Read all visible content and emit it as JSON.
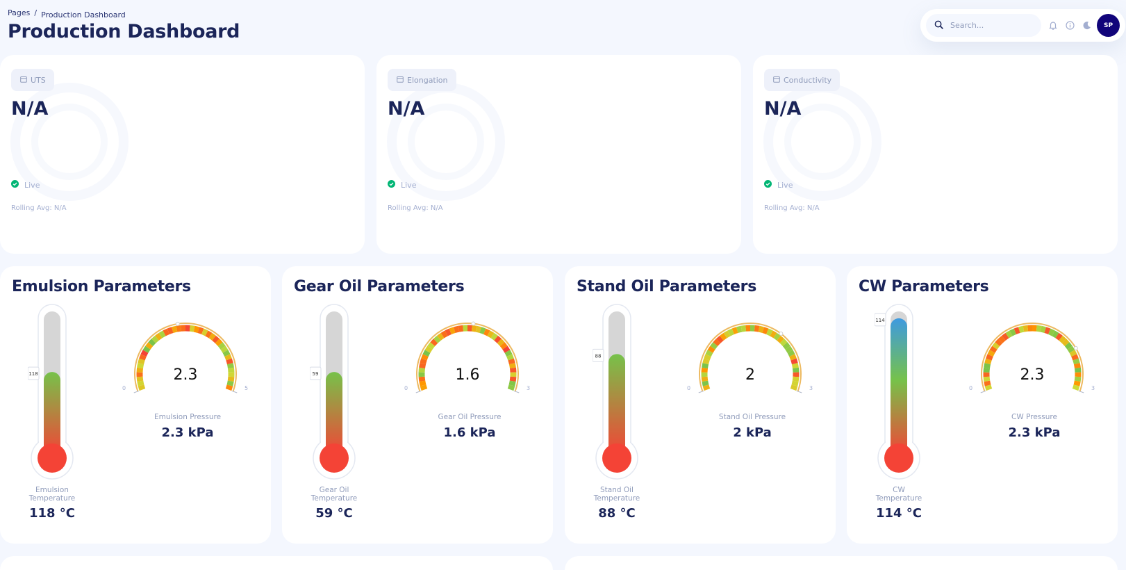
{
  "breadcrumb": {
    "root": "Pages",
    "separator": "/",
    "current": "Production Dashboard"
  },
  "page_title": "Production Dashboard",
  "topbar": {
    "search_placeholder": "Search...",
    "avatar_initials": "SP"
  },
  "kpis": [
    {
      "label": "UTS",
      "value": "N/A",
      "status": "Live",
      "rolling_avg": "Rolling Avg: N/A"
    },
    {
      "label": "Elongation",
      "value": "N/A",
      "status": "Live",
      "rolling_avg": "Rolling Avg: N/A"
    },
    {
      "label": "Conductivity",
      "value": "N/A",
      "status": "Live",
      "rolling_avg": "Rolling Avg: N/A"
    }
  ],
  "panels": [
    {
      "title": "Emulsion Parameters",
      "temp_value": 118,
      "temp_tag": "118",
      "temp_level": 0.56,
      "temp_label_1": "Emulsion",
      "temp_label_2": "Temperature",
      "temp_display": "118 °C",
      "gauge_value": "2.3",
      "gauge_fraction": 0.46,
      "gauge_min": "0",
      "gauge_max": "5",
      "gauge_label": "Emulsion Pressure",
      "gauge_display": "2.3 kPa"
    },
    {
      "title": "Gear Oil Parameters",
      "temp_value": 59,
      "temp_tag": "59",
      "temp_level": 0.56,
      "temp_label_1": "Gear Oil",
      "temp_label_2": "Temperature",
      "temp_display": "59 °C",
      "gauge_value": "1.6",
      "gauge_fraction": 0.53,
      "gauge_min": "0",
      "gauge_max": "3",
      "gauge_label": "Gear Oil Pressure",
      "gauge_display": "1.6 kPa"
    },
    {
      "title": "Stand Oil Parameters",
      "temp_value": 88,
      "temp_tag": "88",
      "temp_level": 0.69,
      "temp_label_1": "Stand Oil",
      "temp_label_2": "Temperature",
      "temp_display": "88 °C",
      "gauge_value": "2",
      "gauge_fraction": 0.67,
      "gauge_min": "0",
      "gauge_max": "3",
      "gauge_label": "Stand Oil Pressure",
      "gauge_display": "2 kPa"
    },
    {
      "title": "CW Parameters",
      "temp_value": 114,
      "temp_tag": "114",
      "temp_level": 0.95,
      "temp_label_1": "CW",
      "temp_label_2": "Temperature",
      "temp_display": "114 °C",
      "gauge_value": "2.3",
      "gauge_fraction": 0.77,
      "gauge_min": "0",
      "gauge_max": "3",
      "gauge_label": "CW Pressure",
      "gauge_display": "2.3 kPa"
    }
  ],
  "colors": {
    "primary": "#11047a",
    "text_dark": "#1b2559",
    "text_muted": "#a3aed0",
    "live_green": "#01b574",
    "background": "#f4f7fe"
  }
}
